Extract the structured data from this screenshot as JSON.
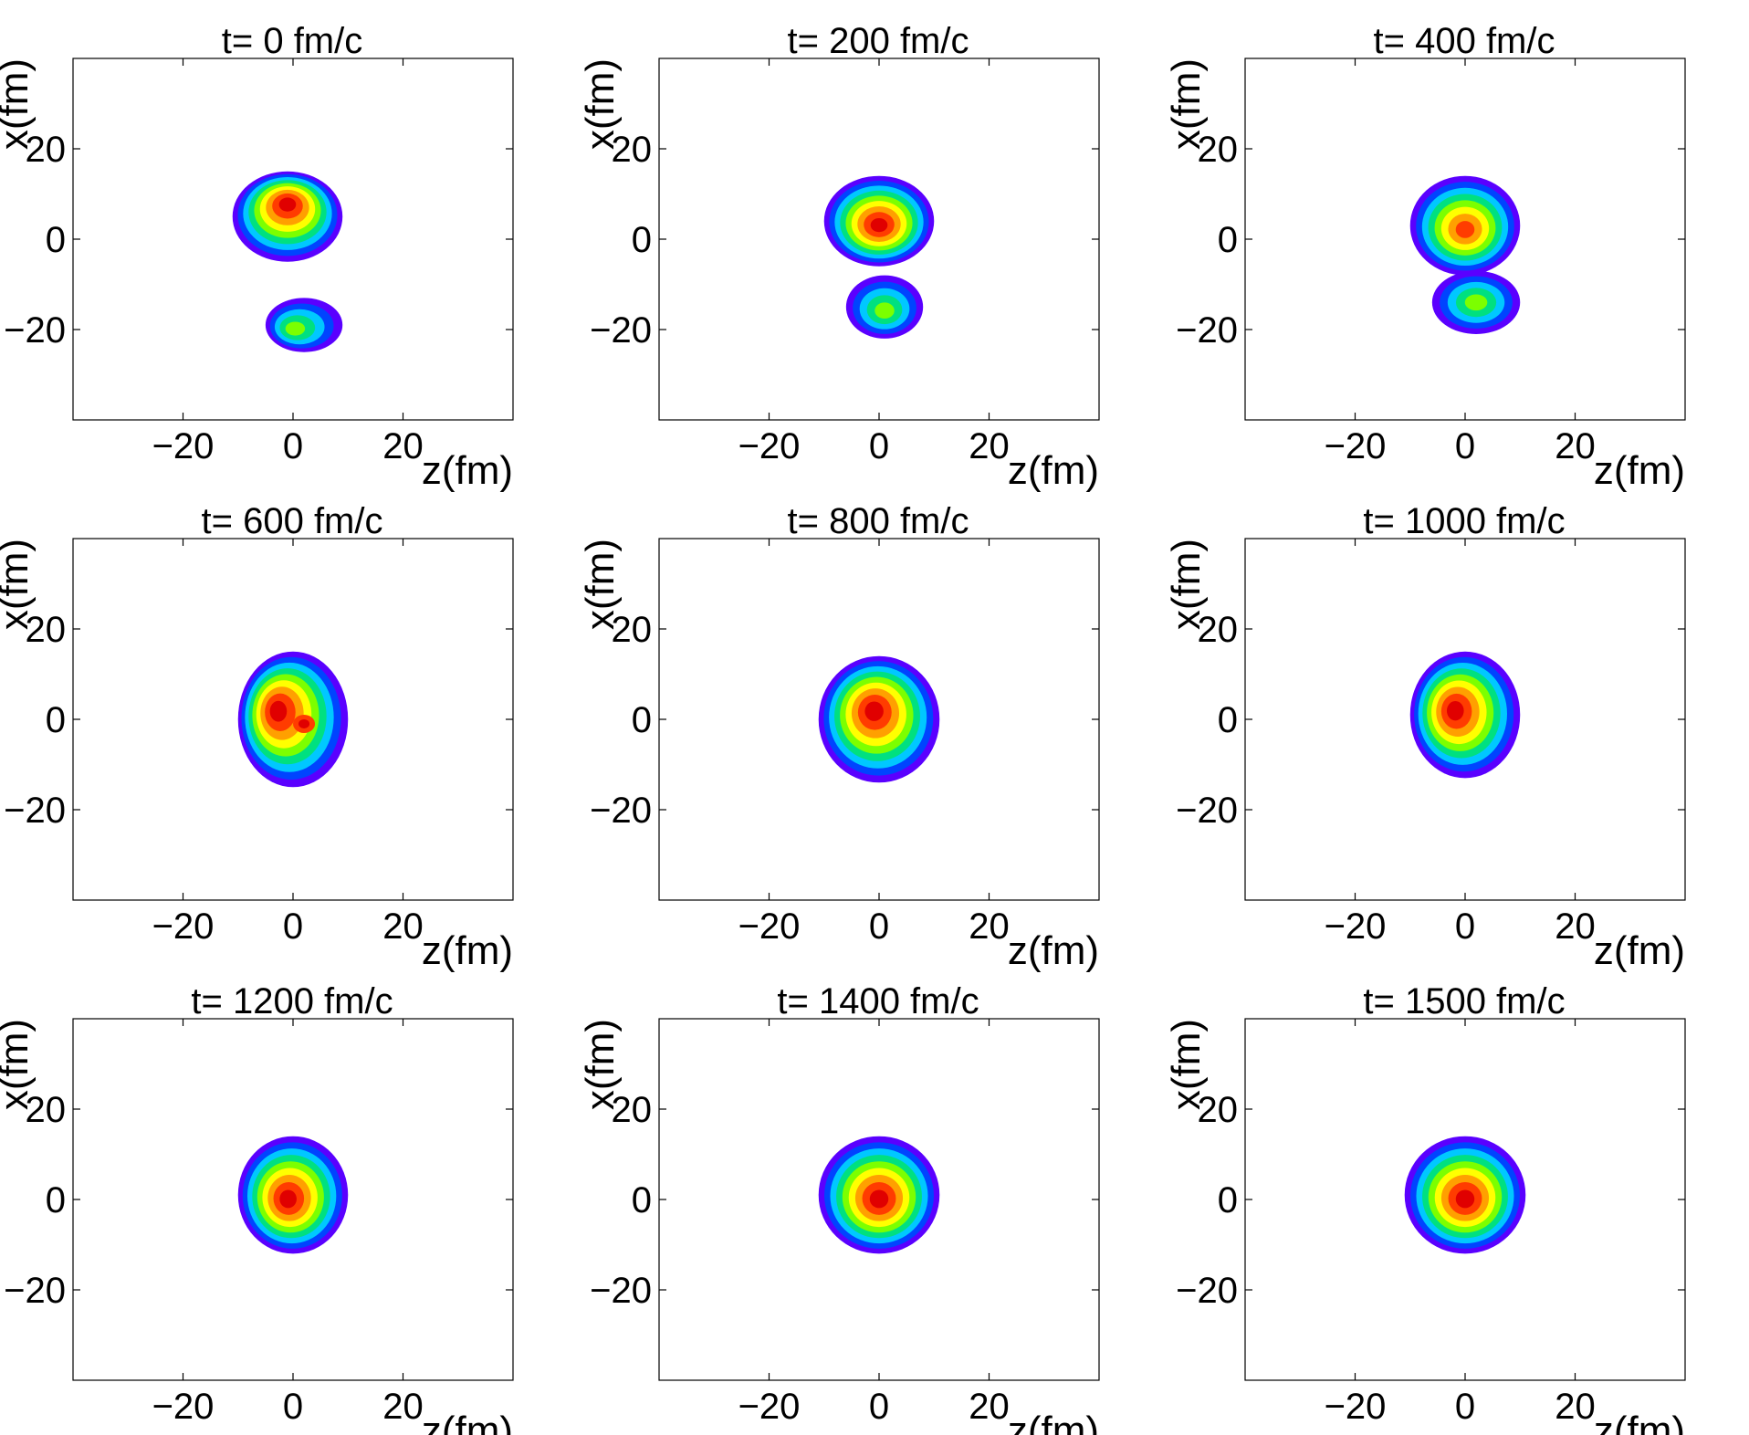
{
  "chart_data": {
    "type": "heatmap",
    "description_panels": "3x3 grid of filled-contour density plots",
    "colorscale": [
      "#5a00ff",
      "#0044ff",
      "#00c8ff",
      "#00e080",
      "#7cff00",
      "#ffff00",
      "#ffa000",
      "#ff3c00",
      "#e00000"
    ],
    "xlabel": "z(fm)",
    "ylabel": "x(fm)",
    "xlim": [
      -40,
      40
    ],
    "ylim": [
      -40,
      40
    ],
    "xticks": [
      -20,
      0,
      20
    ],
    "yticks": [
      20,
      0,
      -20
    ],
    "xtick_labels": [
      "−20",
      "0",
      "20"
    ],
    "ytick_labels": [
      "20",
      "0",
      "−20"
    ],
    "panels": [
      {
        "title": "t= 0 fm/c",
        "t": 0,
        "blobs": [
          {
            "z": -1,
            "x": 5,
            "rz": 10,
            "rx": 10,
            "peak": 9,
            "core": [
              {
                "z": -1,
                "x": 8
              }
            ]
          },
          {
            "z": 2,
            "x": -19,
            "rz": 7,
            "rx": 6,
            "peak": 5,
            "core": [
              {
                "z": 0,
                "x": -20
              }
            ]
          }
        ]
      },
      {
        "title": "t= 200 fm/c",
        "t": 200,
        "blobs": [
          {
            "z": 0,
            "x": 4,
            "rz": 10,
            "rx": 10,
            "peak": 9,
            "core": [
              {
                "z": 0,
                "x": 3
              }
            ]
          },
          {
            "z": 1,
            "x": -15,
            "rz": 7,
            "rx": 7,
            "peak": 5,
            "core": [
              {
                "z": 1,
                "x": -16
              }
            ]
          }
        ]
      },
      {
        "title": "t= 400 fm/c",
        "t": 400,
        "blobs": [
          {
            "z": 0,
            "x": 3,
            "rz": 10,
            "rx": 11,
            "peak": 8,
            "core": [
              {
                "z": 0,
                "x": 2
              }
            ]
          },
          {
            "z": 2,
            "x": -14,
            "rz": 8,
            "rx": 7,
            "peak": 5,
            "core": [
              {
                "z": 2,
                "x": -14
              }
            ]
          }
        ]
      },
      {
        "title": "t= 600 fm/c",
        "t": 600,
        "blobs": [
          {
            "z": 0,
            "x": 0,
            "rz": 10,
            "rx": 15,
            "peak": 9,
            "core": [
              {
                "z": -3,
                "x": 2
              },
              {
                "z": 2,
                "x": -1
              }
            ]
          }
        ]
      },
      {
        "title": "t= 800 fm/c",
        "t": 800,
        "blobs": [
          {
            "z": 0,
            "x": 0,
            "rz": 11,
            "rx": 14,
            "peak": 9,
            "core": [
              {
                "z": -1,
                "x": 2
              }
            ]
          }
        ]
      },
      {
        "title": "t= 1000 fm/c",
        "t": 1000,
        "blobs": [
          {
            "z": 0,
            "x": 1,
            "rz": 10,
            "rx": 14,
            "peak": 9,
            "core": [
              {
                "z": -2,
                "x": 2
              }
            ]
          }
        ]
      },
      {
        "title": "t= 1200 fm/c",
        "t": 1200,
        "blobs": [
          {
            "z": 0,
            "x": 1,
            "rz": 10,
            "rx": 13,
            "peak": 9,
            "core": [
              {
                "z": -1,
                "x": 0
              }
            ]
          }
        ]
      },
      {
        "title": "t= 1400 fm/c",
        "t": 1400,
        "blobs": [
          {
            "z": 0,
            "x": 1,
            "rz": 11,
            "rx": 13,
            "peak": 9,
            "core": [
              {
                "z": 0,
                "x": 0
              }
            ]
          }
        ]
      },
      {
        "title": "t= 1500 fm/c",
        "t": 1500,
        "blobs": [
          {
            "z": 0,
            "x": 1,
            "rz": 11,
            "rx": 13,
            "peak": 9,
            "core": [
              {
                "z": 0,
                "x": 0
              }
            ]
          }
        ]
      }
    ]
  }
}
